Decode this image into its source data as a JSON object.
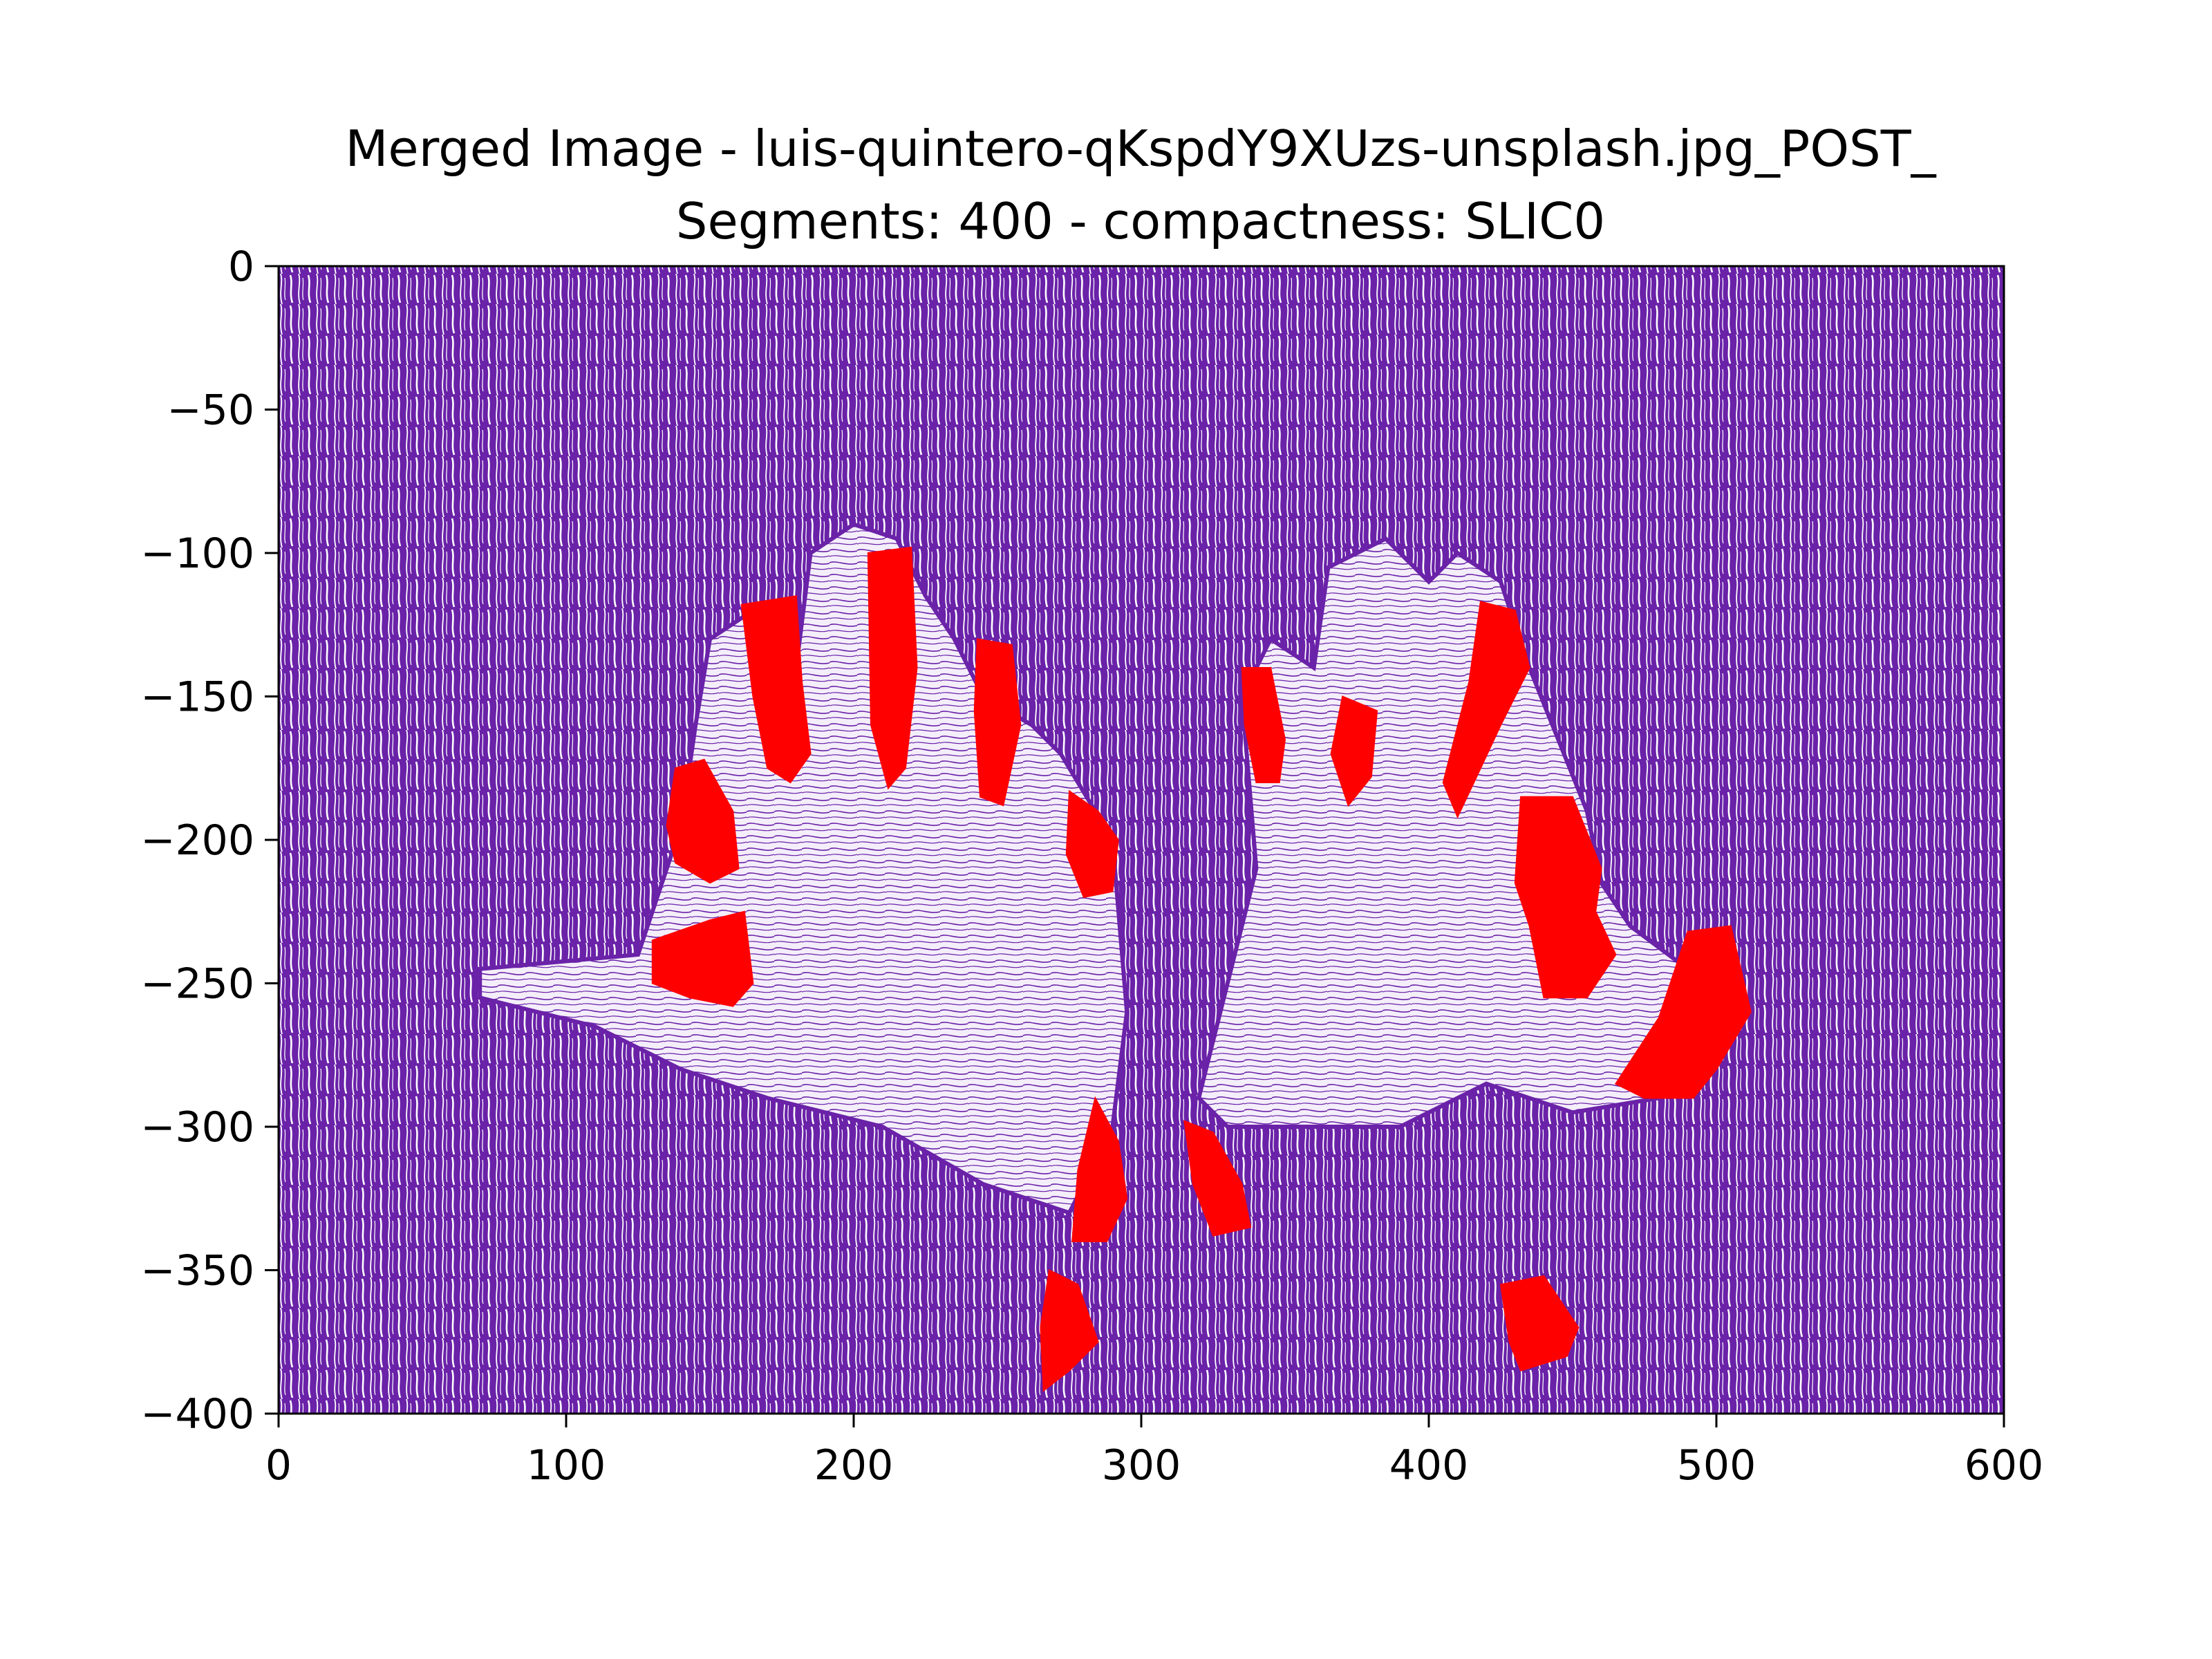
{
  "chart_data": {
    "type": "heatmap",
    "title_lines": [
      "Merged Image - luis-quintero-qKspdY9XUzs-unsplash.jpg_POST_",
      "Segments: 400 - compactness: SLIC0"
    ],
    "xlabel": "",
    "ylabel": "",
    "xlim": [
      0,
      600
    ],
    "ylim": [
      -400,
      0
    ],
    "x_ticks": [
      0,
      100,
      200,
      300,
      400,
      500,
      600
    ],
    "y_ticks": [
      0,
      -50,
      -100,
      -150,
      -200,
      -250,
      -300,
      -350,
      -400
    ],
    "x_tick_labels": [
      "0",
      "100",
      "200",
      "300",
      "400",
      "500",
      "600"
    ],
    "y_tick_labels": [
      "0",
      "−50",
      "−100",
      "−150",
      "−200",
      "−250",
      "−300",
      "−350",
      "−400"
    ],
    "grid": false,
    "colors": {
      "background_fill": "#6a22a8",
      "stroke_light": "#ffffff",
      "highlight": "#ff0000",
      "palm_fill": "#e8dcf3"
    },
    "hands": [
      {
        "name": "left-hand",
        "outline": [
          [
            70,
            -245
          ],
          [
            125,
            -240
          ],
          [
            140,
            -195
          ],
          [
            145,
            -160
          ],
          [
            150,
            -130
          ],
          [
            165,
            -120
          ],
          [
            180,
            -140
          ],
          [
            185,
            -100
          ],
          [
            200,
            -90
          ],
          [
            215,
            -95
          ],
          [
            225,
            -115
          ],
          [
            235,
            -130
          ],
          [
            245,
            -150
          ],
          [
            262,
            -160
          ],
          [
            272,
            -170
          ],
          [
            290,
            -200
          ],
          [
            295,
            -260
          ],
          [
            290,
            -300
          ],
          [
            275,
            -330
          ],
          [
            245,
            -320
          ],
          [
            210,
            -300
          ],
          [
            170,
            -290
          ],
          [
            140,
            -280
          ],
          [
            110,
            -265
          ],
          [
            70,
            -255
          ]
        ]
      },
      {
        "name": "right-hand",
        "outline": [
          [
            320,
            -290
          ],
          [
            330,
            -250
          ],
          [
            340,
            -210
          ],
          [
            335,
            -150
          ],
          [
            345,
            -130
          ],
          [
            360,
            -140
          ],
          [
            365,
            -105
          ],
          [
            385,
            -95
          ],
          [
            400,
            -110
          ],
          [
            410,
            -100
          ],
          [
            425,
            -110
          ],
          [
            435,
            -140
          ],
          [
            445,
            -165
          ],
          [
            455,
            -190
          ],
          [
            460,
            -215
          ],
          [
            470,
            -230
          ],
          [
            490,
            -245
          ],
          [
            500,
            -265
          ],
          [
            480,
            -290
          ],
          [
            450,
            -295
          ],
          [
            420,
            -285
          ],
          [
            390,
            -300
          ],
          [
            355,
            -300
          ],
          [
            330,
            -300
          ]
        ]
      }
    ],
    "highlighted_segments": [
      [
        [
          161,
          -118
        ],
        [
          180,
          -115
        ],
        [
          182,
          -145
        ],
        [
          185,
          -170
        ],
        [
          178,
          -180
        ],
        [
          170,
          -175
        ],
        [
          165,
          -150
        ]
      ],
      [
        [
          205,
          -100
        ],
        [
          220,
          -98
        ],
        [
          222,
          -140
        ],
        [
          218,
          -175
        ],
        [
          212,
          -182
        ],
        [
          206,
          -160
        ]
      ],
      [
        [
          243,
          -130
        ],
        [
          255,
          -132
        ],
        [
          258,
          -160
        ],
        [
          252,
          -188
        ],
        [
          244,
          -185
        ],
        [
          242,
          -155
        ]
      ],
      [
        [
          138,
          -175
        ],
        [
          148,
          -172
        ],
        [
          158,
          -190
        ],
        [
          160,
          -210
        ],
        [
          150,
          -215
        ],
        [
          138,
          -208
        ],
        [
          135,
          -195
        ]
      ],
      [
        [
          130,
          -235
        ],
        [
          150,
          -228
        ],
        [
          162,
          -225
        ],
        [
          165,
          -250
        ],
        [
          158,
          -258
        ],
        [
          143,
          -255
        ],
        [
          130,
          -250
        ]
      ],
      [
        [
          275,
          -183
        ],
        [
          285,
          -190
        ],
        [
          292,
          -200
        ],
        [
          290,
          -218
        ],
        [
          280,
          -220
        ],
        [
          274,
          -205
        ]
      ],
      [
        [
          335,
          -140
        ],
        [
          345,
          -140
        ],
        [
          350,
          -165
        ],
        [
          348,
          -180
        ],
        [
          340,
          -180
        ],
        [
          336,
          -160
        ]
      ],
      [
        [
          370,
          -150
        ],
        [
          382,
          -155
        ],
        [
          380,
          -178
        ],
        [
          372,
          -188
        ],
        [
          366,
          -170
        ]
      ],
      [
        [
          418,
          -117
        ],
        [
          430,
          -120
        ],
        [
          435,
          -140
        ],
        [
          425,
          -160
        ],
        [
          418,
          -175
        ],
        [
          410,
          -192
        ],
        [
          405,
          -180
        ],
        [
          414,
          -145
        ]
      ],
      [
        [
          432,
          -185
        ],
        [
          450,
          -185
        ],
        [
          460,
          -210
        ],
        [
          458,
          -225
        ],
        [
          465,
          -240
        ],
        [
          455,
          -255
        ],
        [
          440,
          -255
        ],
        [
          435,
          -230
        ],
        [
          430,
          -215
        ]
      ],
      [
        [
          490,
          -232
        ],
        [
          505,
          -230
        ],
        [
          512,
          -260
        ],
        [
          500,
          -280
        ],
        [
          492,
          -290
        ],
        [
          475,
          -290
        ],
        [
          465,
          -285
        ],
        [
          480,
          -262
        ]
      ],
      [
        [
          284,
          -290
        ],
        [
          292,
          -305
        ],
        [
          295,
          -325
        ],
        [
          288,
          -340
        ],
        [
          276,
          -340
        ],
        [
          278,
          -315
        ]
      ],
      [
        [
          315,
          -298
        ],
        [
          325,
          -302
        ],
        [
          335,
          -320
        ],
        [
          338,
          -335
        ],
        [
          325,
          -338
        ],
        [
          318,
          -320
        ]
      ],
      [
        [
          268,
          -350
        ],
        [
          278,
          -355
        ],
        [
          285,
          -375
        ],
        [
          275,
          -385
        ],
        [
          266,
          -392
        ],
        [
          265,
          -370
        ]
      ],
      [
        [
          425,
          -355
        ],
        [
          440,
          -352
        ],
        [
          452,
          -370
        ],
        [
          448,
          -380
        ],
        [
          432,
          -385
        ],
        [
          428,
          -375
        ]
      ]
    ]
  }
}
